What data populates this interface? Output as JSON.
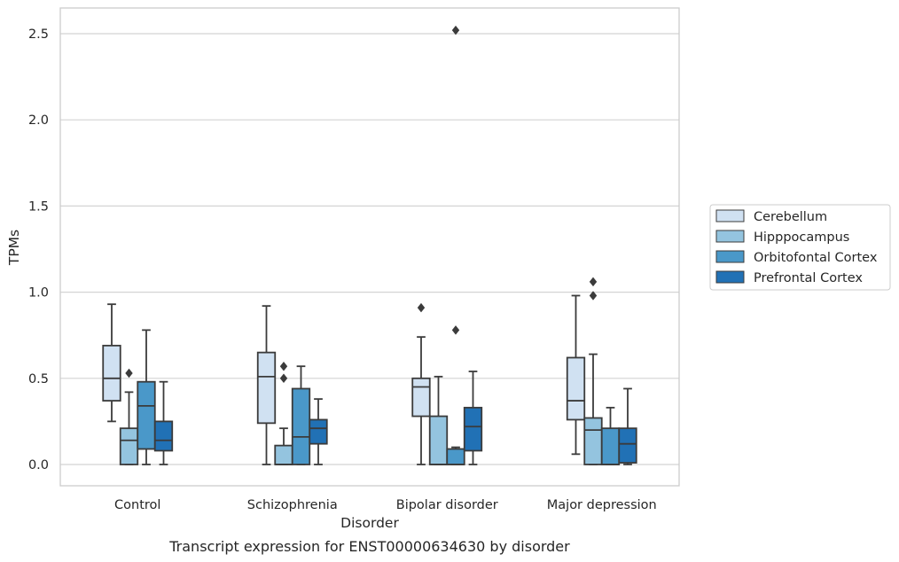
{
  "chart_data": {
    "type": "box",
    "caption": "Transcript expression for ENST00000634630 by disorder",
    "xlabel": "Disorder",
    "ylabel": "TPMs",
    "ylim": [
      -0.12,
      2.65
    ],
    "yticks": [
      "0.0",
      "0.5",
      "1.0",
      "1.5",
      "2.0",
      "2.5"
    ],
    "grid": "horizontal",
    "legend_position": "right",
    "categories": [
      "Control",
      "Schizophrenia",
      "Bipolar disorder",
      "Major depression"
    ],
    "series": [
      {
        "name": "Cerebellum",
        "color": "#d0e1f2",
        "boxes": [
          {
            "whisker_low": 0.25,
            "q1": 0.37,
            "median": 0.5,
            "q3": 0.69,
            "whisker_high": 0.93,
            "outliers": []
          },
          {
            "whisker_low": 0.0,
            "q1": 0.24,
            "median": 0.51,
            "q3": 0.65,
            "whisker_high": 0.92,
            "outliers": []
          },
          {
            "whisker_low": 0.0,
            "q1": 0.28,
            "median": 0.45,
            "q3": 0.5,
            "whisker_high": 0.74,
            "outliers": [
              0.91
            ]
          },
          {
            "whisker_low": 0.06,
            "q1": 0.26,
            "median": 0.37,
            "q3": 0.62,
            "whisker_high": 0.98,
            "outliers": []
          }
        ]
      },
      {
        "name": "Hipppocampus",
        "color": "#94c4df",
        "boxes": [
          {
            "whisker_low": 0.0,
            "q1": 0.0,
            "median": 0.14,
            "q3": 0.21,
            "whisker_high": 0.42,
            "outliers": [
              0.53
            ]
          },
          {
            "whisker_low": 0.0,
            "q1": 0.0,
            "median": 0.0,
            "q3": 0.11,
            "whisker_high": 0.21,
            "outliers": [
              0.5,
              0.57
            ]
          },
          {
            "whisker_low": 0.0,
            "q1": 0.0,
            "median": 0.0,
            "q3": 0.28,
            "whisker_high": 0.51,
            "outliers": []
          },
          {
            "whisker_low": 0.0,
            "q1": 0.0,
            "median": 0.2,
            "q3": 0.27,
            "whisker_high": 0.64,
            "outliers": [
              0.98,
              1.06
            ]
          }
        ]
      },
      {
        "name": "Orbitofontal Cortex",
        "color": "#4a98c9",
        "boxes": [
          {
            "whisker_low": 0.0,
            "q1": 0.09,
            "median": 0.34,
            "q3": 0.48,
            "whisker_high": 0.78,
            "outliers": []
          },
          {
            "whisker_low": 0.0,
            "q1": 0.0,
            "median": 0.16,
            "q3": 0.44,
            "whisker_high": 0.57,
            "outliers": []
          },
          {
            "whisker_low": 0.0,
            "q1": 0.0,
            "median": 0.0,
            "q3": 0.09,
            "whisker_high": 0.1,
            "outliers": [
              0.78,
              2.52
            ]
          },
          {
            "whisker_low": 0.0,
            "q1": 0.0,
            "median": 0.0,
            "q3": 0.21,
            "whisker_high": 0.33,
            "outliers": []
          }
        ]
      },
      {
        "name": "Prefrontal Cortex",
        "color": "#2171b5",
        "boxes": [
          {
            "whisker_low": 0.0,
            "q1": 0.08,
            "median": 0.14,
            "q3": 0.25,
            "whisker_high": 0.48,
            "outliers": []
          },
          {
            "whisker_low": 0.0,
            "q1": 0.12,
            "median": 0.21,
            "q3": 0.26,
            "whisker_high": 0.38,
            "outliers": []
          },
          {
            "whisker_low": 0.0,
            "q1": 0.08,
            "median": 0.22,
            "q3": 0.33,
            "whisker_high": 0.54,
            "outliers": []
          },
          {
            "whisker_low": 0.0,
            "q1": 0.01,
            "median": 0.12,
            "q3": 0.21,
            "whisker_high": 0.44,
            "outliers": []
          }
        ]
      }
    ]
  },
  "colors": {
    "grid": "#d4d4d4",
    "frame": "#cccccc",
    "box_edge": "#3b3b3b"
  }
}
